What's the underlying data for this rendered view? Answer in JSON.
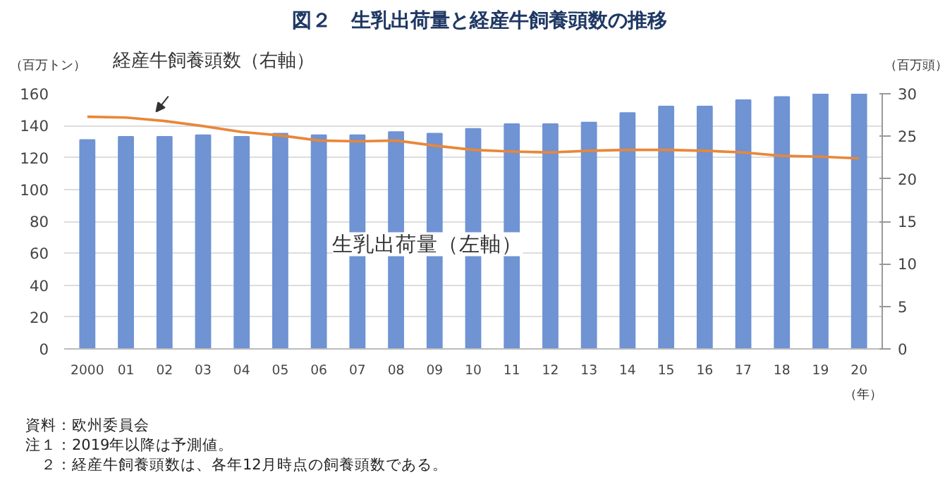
{
  "chart_data": {
    "type": "bar",
    "title": "図２　生乳出荷量と経産牛飼養頭数の推移",
    "ylabel": "（百万トン）",
    "y2label": "（百万頭）",
    "xlabel": "（年）",
    "categories": [
      "2000",
      "01",
      "02",
      "03",
      "04",
      "05",
      "06",
      "07",
      "08",
      "09",
      "10",
      "11",
      "12",
      "13",
      "14",
      "15",
      "16",
      "17",
      "18",
      "19",
      "20"
    ],
    "series": [
      {
        "name": "生乳出荷量（左軸）",
        "color": "#6f93d3",
        "values": [
          131,
          133,
          133,
          134,
          133,
          135,
          134,
          134,
          136,
          135,
          138,
          141,
          141,
          142,
          148,
          152,
          152,
          156,
          158,
          160,
          160
        ]
      },
      {
        "name": "経産牛飼養頭数（右軸）",
        "type": "line",
        "axis": "y2",
        "color": "#e8873a",
        "values": [
          27.3,
          27.2,
          26.8,
          26.2,
          25.5,
          25.1,
          24.5,
          24.4,
          24.5,
          23.9,
          23.4,
          23.2,
          23.1,
          23.3,
          23.4,
          23.4,
          23.3,
          23.1,
          22.7,
          22.6,
          22.4
        ]
      }
    ],
    "ylim": [
      0,
      160
    ],
    "yticks": [
      0,
      20,
      40,
      60,
      80,
      100,
      120,
      140,
      160
    ],
    "y2lim": [
      0,
      30
    ],
    "y2ticks": [
      0,
      5,
      10,
      15,
      20,
      25,
      30
    ],
    "grid": "y",
    "legend": false,
    "annotations": [
      "資料：欧州委員会",
      "注１：2019年以降は予測値。",
      "　２：経産牛飼養頭数は、各年12月時点の飼養頭数である。"
    ]
  }
}
